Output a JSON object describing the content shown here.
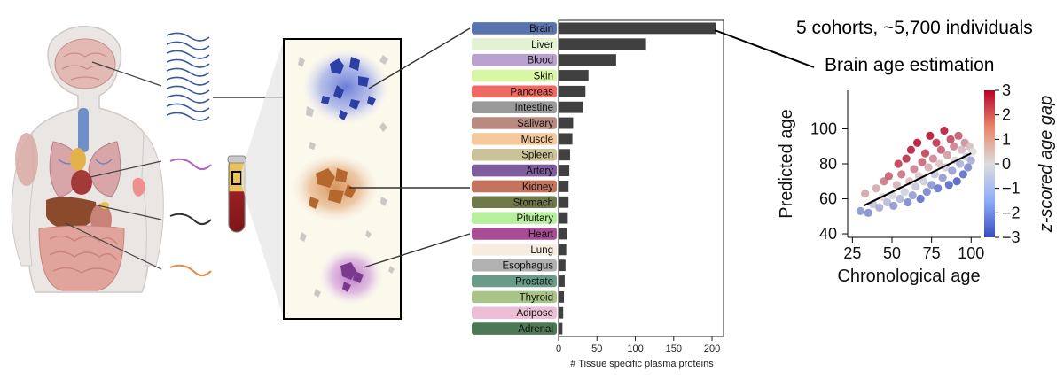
{
  "header": {
    "cohorts": "5 cohorts, ~5,700 individuals",
    "task": "Brain age estimation"
  },
  "chart_data": [
    {
      "type": "bar",
      "orientation": "horizontal",
      "title": "",
      "xlabel": "# Tissue specific plasma proteins",
      "ylabel": "",
      "xlim": [
        0,
        215
      ],
      "xticks": [
        "0",
        "50",
        "100",
        "150",
        "200"
      ],
      "categories": [
        "Brain",
        "Liver",
        "Blood",
        "Skin",
        "Pancreas",
        "Intestine",
        "Salivary",
        "Muscle",
        "Spleen",
        "Artery",
        "Kidney",
        "Stomach",
        "Pituitary",
        "Heart",
        "Lung",
        "Esophagus",
        "Prostate",
        "Thyroid",
        "Adipose",
        "Adrenal"
      ],
      "values": [
        205,
        114,
        75,
        39,
        35,
        32,
        19,
        18,
        15,
        14,
        13,
        13,
        12,
        11,
        10,
        9,
        8,
        7,
        6,
        5
      ],
      "category_colors": [
        "#5873ad",
        "#e3f2d3",
        "#b9a1d0",
        "#d7f7a4",
        "#ef6a62",
        "#9a9a9a",
        "#b88a80",
        "#f5c99b",
        "#cbc297",
        "#7e5d9e",
        "#c4735c",
        "#6e7b49",
        "#b7f09d",
        "#a84c96",
        "#f7ece0",
        "#b1b1b1",
        "#6a9a88",
        "#a9c487",
        "#edbfd7",
        "#4c7955"
      ],
      "bar_color": "#404040"
    },
    {
      "type": "scatter",
      "title": "",
      "xlabel": "Chronological age",
      "ylabel": "Predicted age",
      "xlim": [
        22,
        106
      ],
      "ylim": [
        38,
        122
      ],
      "xticks": [
        25,
        50,
        75,
        100
      ],
      "yticks": [
        40,
        60,
        80,
        100
      ],
      "trend_line": {
        "x": [
          32,
          100
        ],
        "y": [
          56,
          86
        ]
      },
      "colorbar": {
        "label": "z-scored age gap",
        "ticks": [
          "3",
          "2",
          "1",
          "0",
          "−1",
          "−2",
          "−3"
        ],
        "range": [
          -3,
          3
        ],
        "colormap": "coolwarm-red-to-blue"
      },
      "series": [
        {
          "name": "individuals",
          "points": [
            [
              30,
              53,
              -1.6
            ],
            [
              33,
              63,
              0.9
            ],
            [
              35,
              52,
              -1.8
            ],
            [
              38,
              57,
              -0.6
            ],
            [
              40,
              66,
              0.8
            ],
            [
              42,
              55,
              -1.1
            ],
            [
              44,
              61,
              0.1
            ],
            [
              45,
              70,
              1.5
            ],
            [
              47,
              58,
              -0.8
            ],
            [
              48,
              73,
              1.9
            ],
            [
              50,
              62,
              -0.2
            ],
            [
              51,
              56,
              -1.6
            ],
            [
              53,
              68,
              0.7
            ],
            [
              54,
              80,
              2.4
            ],
            [
              55,
              60,
              -0.9
            ],
            [
              56,
              74,
              1.6
            ],
            [
              58,
              64,
              -0.3
            ],
            [
              59,
              83,
              2.6
            ],
            [
              60,
              58,
              -1.9
            ],
            [
              61,
              70,
              0.5
            ],
            [
              62,
              88,
              2.8
            ],
            [
              63,
              62,
              -1.4
            ],
            [
              64,
              77,
              1.4
            ],
            [
              65,
              67,
              -0.5
            ],
            [
              66,
              92,
              3.0
            ],
            [
              67,
              73,
              0.4
            ],
            [
              68,
              60,
              -2.4
            ],
            [
              69,
              81,
              1.8
            ],
            [
              70,
              70,
              -0.4
            ],
            [
              71,
              86,
              2.3
            ],
            [
              72,
              64,
              -1.9
            ],
            [
              73,
              78,
              0.8
            ],
            [
              74,
              96,
              3.0
            ],
            [
              75,
              68,
              -1.6
            ],
            [
              76,
              83,
              1.3
            ],
            [
              77,
              74,
              -0.5
            ],
            [
              78,
              92,
              2.5
            ],
            [
              79,
              66,
              -2.3
            ],
            [
              80,
              80,
              0.4
            ],
            [
              81,
              88,
              1.9
            ],
            [
              82,
              72,
              -1.5
            ],
            [
              83,
              99,
              2.9
            ],
            [
              84,
              78,
              -0.3
            ],
            [
              85,
              85,
              1.0
            ],
            [
              86,
              68,
              -2.6
            ],
            [
              87,
              94,
              2.2
            ],
            [
              88,
              76,
              -1.4
            ],
            [
              89,
              90,
              1.4
            ],
            [
              90,
              82,
              -0.1
            ],
            [
              91,
              70,
              -2.8
            ],
            [
              92,
              96,
              2.0
            ],
            [
              93,
              80,
              -1.0
            ],
            [
              94,
              88,
              0.6
            ],
            [
              95,
              74,
              -2.5
            ],
            [
              96,
              92,
              1.2
            ],
            [
              97,
              84,
              -0.4
            ],
            [
              98,
              78,
              -1.9
            ],
            [
              99,
              90,
              0.5
            ],
            [
              100,
              82,
              -1.1
            ],
            [
              101,
              87,
              0.0
            ]
          ]
        }
      ]
    }
  ]
}
